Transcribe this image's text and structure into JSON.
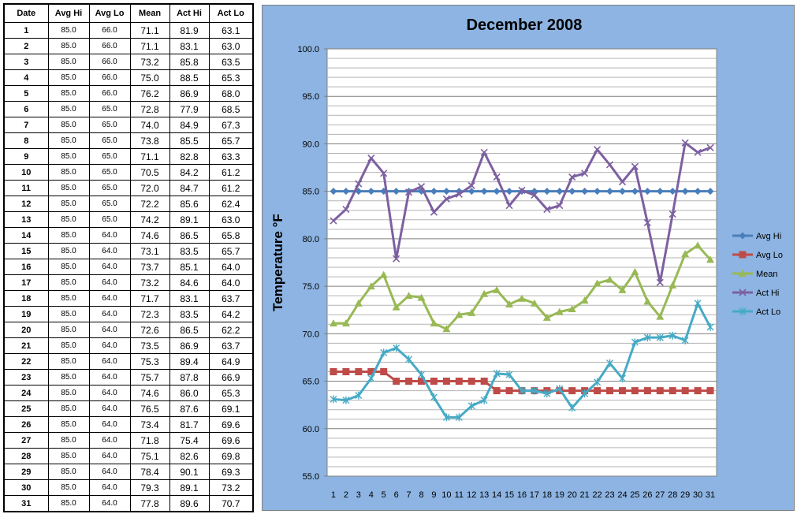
{
  "table": {
    "headers": [
      "Date",
      "Avg Hi",
      "Avg Lo",
      "Mean",
      "Act Hi",
      "Act Lo"
    ],
    "rows": [
      [
        "1",
        "85.0",
        "66.0",
        "71.1",
        "81.9",
        "63.1"
      ],
      [
        "2",
        "85.0",
        "66.0",
        "71.1",
        "83.1",
        "63.0"
      ],
      [
        "3",
        "85.0",
        "66.0",
        "73.2",
        "85.8",
        "63.5"
      ],
      [
        "4",
        "85.0",
        "66.0",
        "75.0",
        "88.5",
        "65.3"
      ],
      [
        "5",
        "85.0",
        "66.0",
        "76.2",
        "86.9",
        "68.0"
      ],
      [
        "6",
        "85.0",
        "65.0",
        "72.8",
        "77.9",
        "68.5"
      ],
      [
        "7",
        "85.0",
        "65.0",
        "74.0",
        "84.9",
        "67.3"
      ],
      [
        "8",
        "85.0",
        "65.0",
        "73.8",
        "85.5",
        "65.7"
      ],
      [
        "9",
        "85.0",
        "65.0",
        "71.1",
        "82.8",
        "63.3"
      ],
      [
        "10",
        "85.0",
        "65.0",
        "70.5",
        "84.2",
        "61.2"
      ],
      [
        "11",
        "85.0",
        "65.0",
        "72.0",
        "84.7",
        "61.2"
      ],
      [
        "12",
        "85.0",
        "65.0",
        "72.2",
        "85.6",
        "62.4"
      ],
      [
        "13",
        "85.0",
        "65.0",
        "74.2",
        "89.1",
        "63.0"
      ],
      [
        "14",
        "85.0",
        "64.0",
        "74.6",
        "86.5",
        "65.8"
      ],
      [
        "15",
        "85.0",
        "64.0",
        "73.1",
        "83.5",
        "65.7"
      ],
      [
        "16",
        "85.0",
        "64.0",
        "73.7",
        "85.1",
        "64.0"
      ],
      [
        "17",
        "85.0",
        "64.0",
        "73.2",
        "84.6",
        "64.0"
      ],
      [
        "18",
        "85.0",
        "64.0",
        "71.7",
        "83.1",
        "63.7"
      ],
      [
        "19",
        "85.0",
        "64.0",
        "72.3",
        "83.5",
        "64.2"
      ],
      [
        "20",
        "85.0",
        "64.0",
        "72.6",
        "86.5",
        "62.2"
      ],
      [
        "21",
        "85.0",
        "64.0",
        "73.5",
        "86.9",
        "63.7"
      ],
      [
        "22",
        "85.0",
        "64.0",
        "75.3",
        "89.4",
        "64.9"
      ],
      [
        "23",
        "85.0",
        "64.0",
        "75.7",
        "87.8",
        "66.9"
      ],
      [
        "24",
        "85.0",
        "64.0",
        "74.6",
        "86.0",
        "65.3"
      ],
      [
        "25",
        "85.0",
        "64.0",
        "76.5",
        "87.6",
        "69.1"
      ],
      [
        "26",
        "85.0",
        "64.0",
        "73.4",
        "81.7",
        "69.6"
      ],
      [
        "27",
        "85.0",
        "64.0",
        "71.8",
        "75.4",
        "69.6"
      ],
      [
        "28",
        "85.0",
        "64.0",
        "75.1",
        "82.6",
        "69.8"
      ],
      [
        "29",
        "85.0",
        "64.0",
        "78.4",
        "90.1",
        "69.3"
      ],
      [
        "30",
        "85.0",
        "64.0",
        "79.3",
        "89.1",
        "73.2"
      ],
      [
        "31",
        "85.0",
        "64.0",
        "77.8",
        "89.6",
        "70.7"
      ]
    ]
  },
  "chart_data": {
    "type": "line",
    "title": "December 2008",
    "xlabel": "",
    "ylabel": "Temperature °F",
    "x": [
      1,
      2,
      3,
      4,
      5,
      6,
      7,
      8,
      9,
      10,
      11,
      12,
      13,
      14,
      15,
      16,
      17,
      18,
      19,
      20,
      21,
      22,
      23,
      24,
      25,
      26,
      27,
      28,
      29,
      30,
      31
    ],
    "ylim": [
      55,
      100
    ],
    "yticks": [
      "55.0",
      "60.0",
      "65.0",
      "70.0",
      "75.0",
      "80.0",
      "85.0",
      "90.0",
      "95.0",
      "100.0"
    ],
    "grid": true,
    "legend": "right",
    "series": [
      {
        "name": "Avg Hi",
        "marker": "diamond",
        "color": "#4A7EBB",
        "values": [
          85,
          85,
          85,
          85,
          85,
          85,
          85,
          85,
          85,
          85,
          85,
          85,
          85,
          85,
          85,
          85,
          85,
          85,
          85,
          85,
          85,
          85,
          85,
          85,
          85,
          85,
          85,
          85,
          85,
          85,
          85
        ]
      },
      {
        "name": "Avg Lo",
        "marker": "square",
        "color": "#BE4B48",
        "values": [
          66,
          66,
          66,
          66,
          66,
          65,
          65,
          65,
          65,
          65,
          65,
          65,
          65,
          64,
          64,
          64,
          64,
          64,
          64,
          64,
          64,
          64,
          64,
          64,
          64,
          64,
          64,
          64,
          64,
          64,
          64
        ]
      },
      {
        "name": "Mean",
        "marker": "triangle",
        "color": "#98B954",
        "values": [
          71.1,
          71.1,
          73.2,
          75.0,
          76.2,
          72.8,
          74.0,
          73.8,
          71.1,
          70.5,
          72.0,
          72.2,
          74.2,
          74.6,
          73.1,
          73.7,
          73.2,
          71.7,
          72.3,
          72.6,
          73.5,
          75.3,
          75.7,
          74.6,
          76.5,
          73.4,
          71.8,
          75.1,
          78.4,
          79.3,
          77.8
        ]
      },
      {
        "name": "Act Hi",
        "marker": "x",
        "color": "#7D60A0",
        "values": [
          81.9,
          83.1,
          85.8,
          88.5,
          86.9,
          77.9,
          84.9,
          85.5,
          82.8,
          84.2,
          84.7,
          85.6,
          89.1,
          86.5,
          83.5,
          85.1,
          84.6,
          83.1,
          83.5,
          86.5,
          86.9,
          89.4,
          87.8,
          86.0,
          87.6,
          81.7,
          75.4,
          82.6,
          90.1,
          89.1,
          89.6
        ]
      },
      {
        "name": "Act Lo",
        "marker": "star",
        "color": "#46AAC5",
        "values": [
          63.1,
          63.0,
          63.5,
          65.3,
          68.0,
          68.5,
          67.3,
          65.7,
          63.3,
          61.2,
          61.2,
          62.4,
          63.0,
          65.8,
          65.7,
          64.0,
          64.0,
          63.7,
          64.2,
          62.2,
          63.7,
          64.9,
          66.9,
          65.3,
          69.1,
          69.6,
          69.6,
          69.8,
          69.3,
          73.2,
          70.7
        ]
      }
    ]
  }
}
